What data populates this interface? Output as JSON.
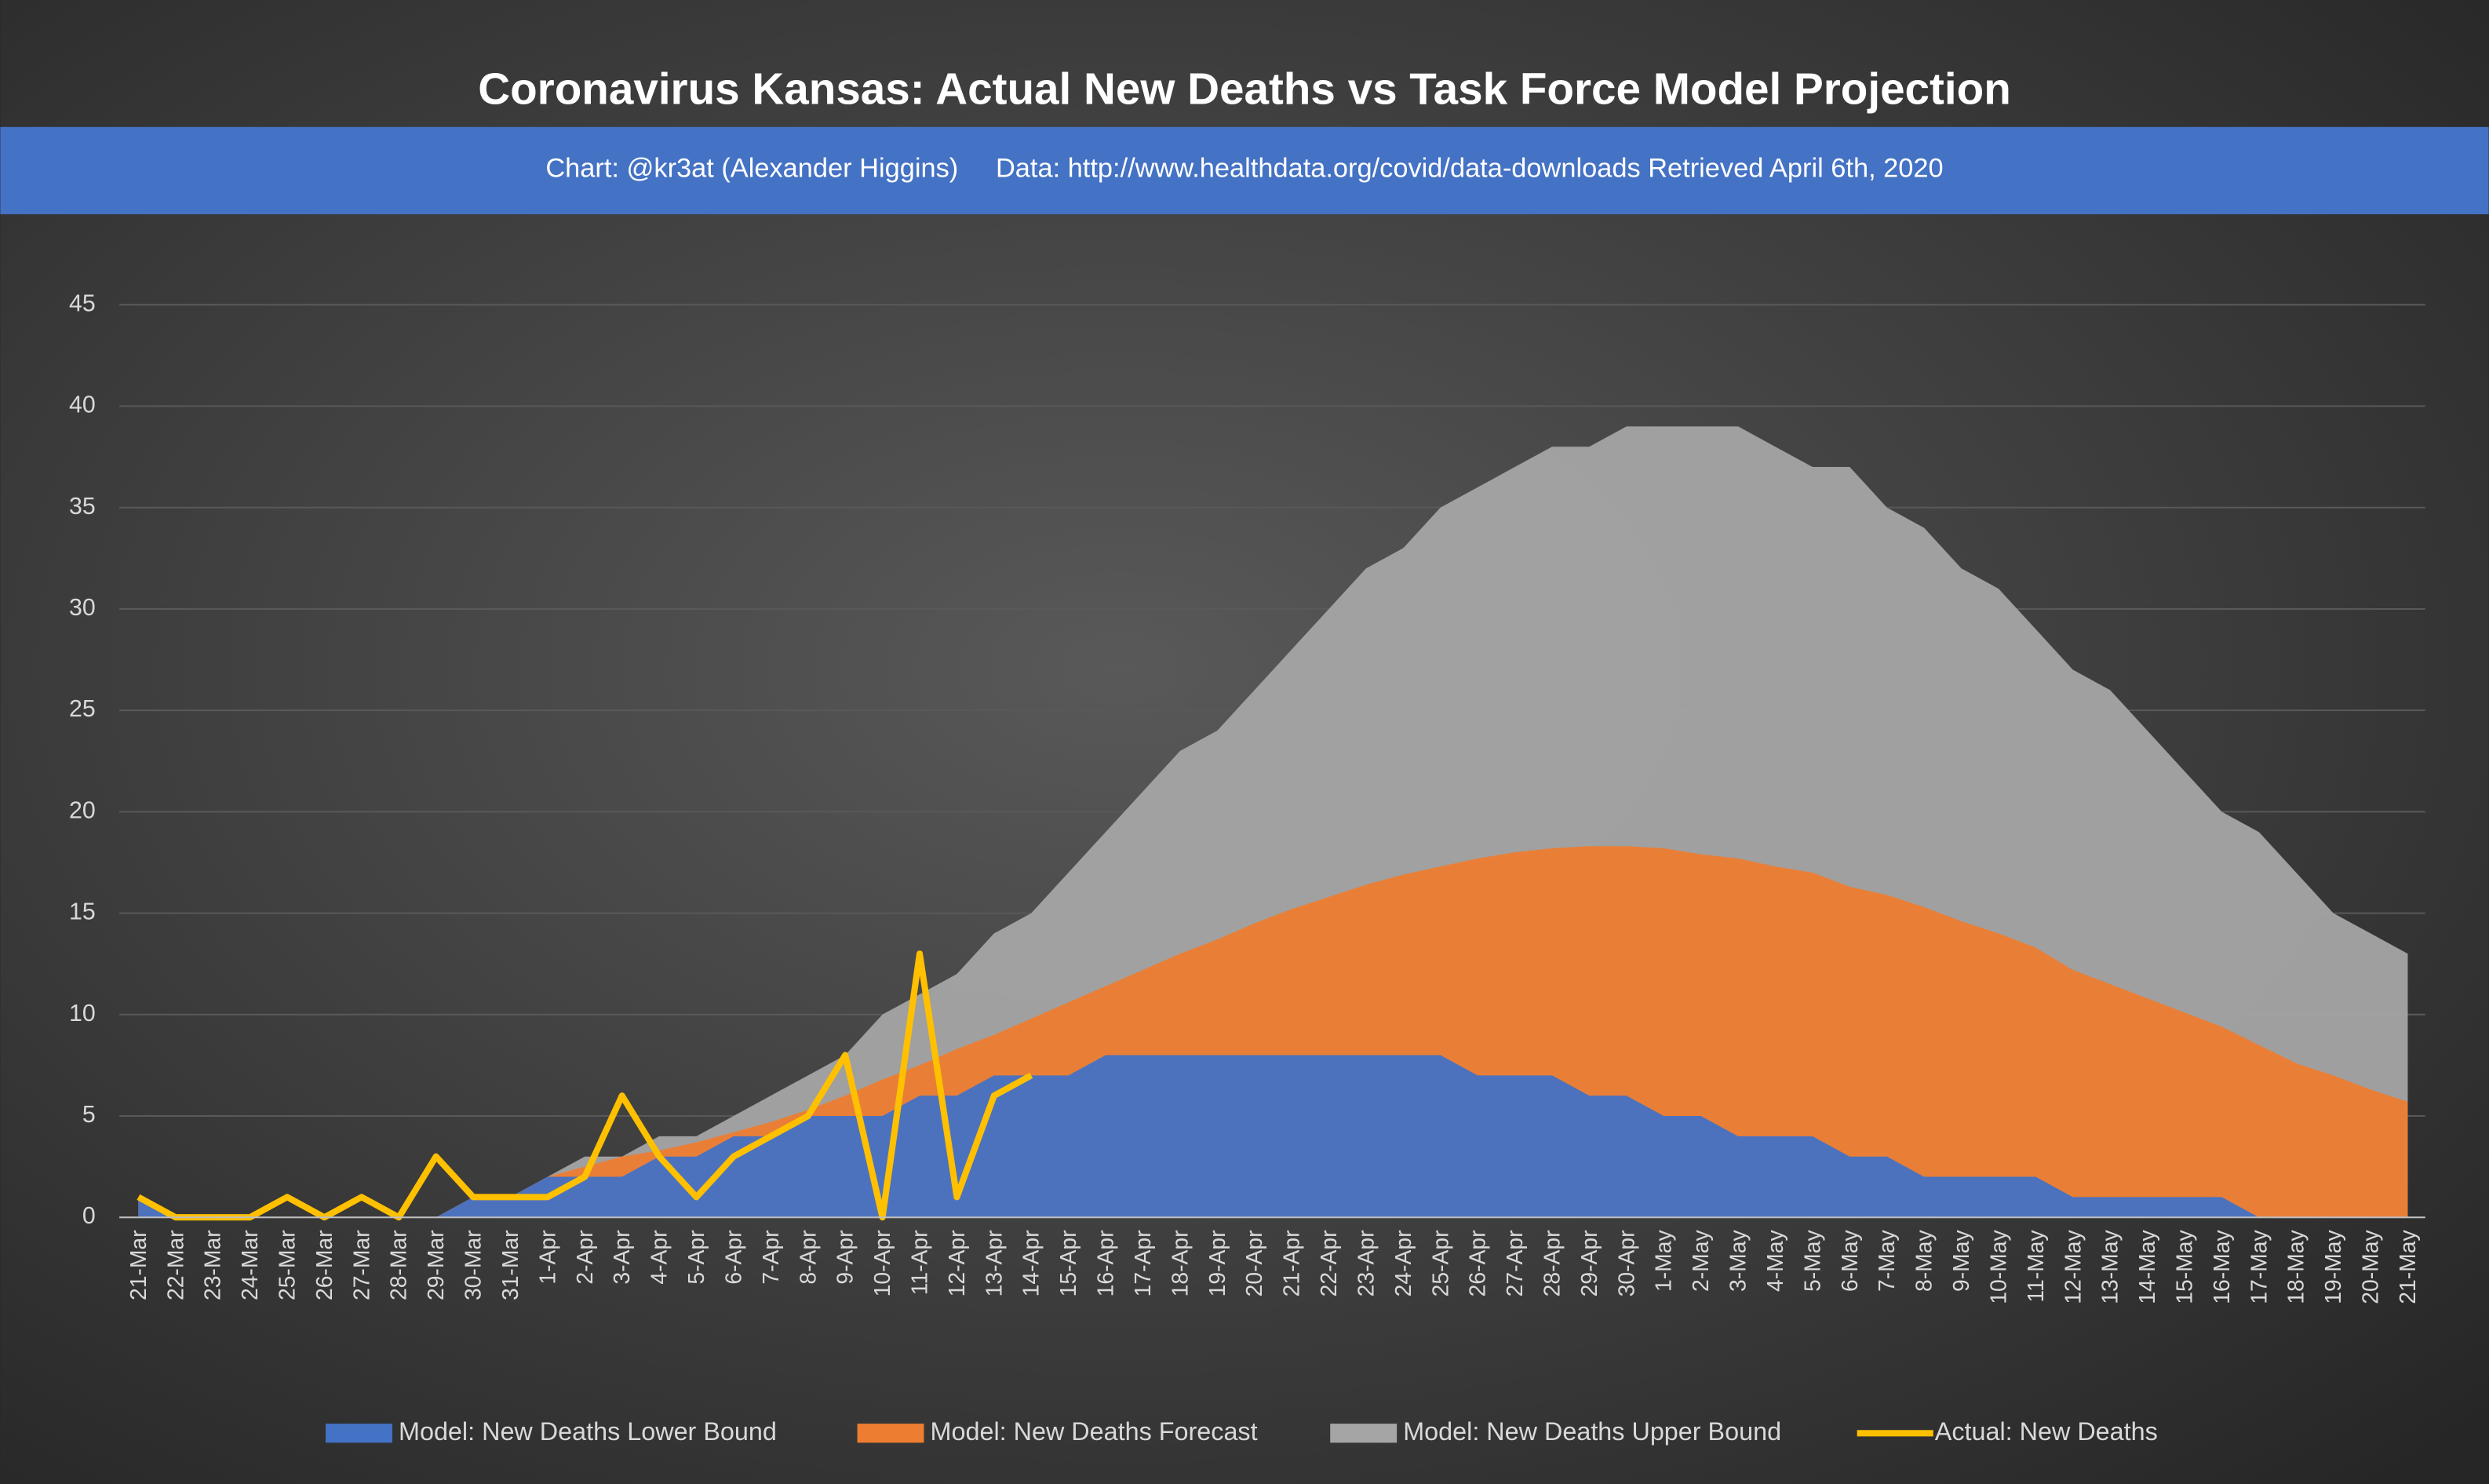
{
  "chart_data": {
    "type": "area",
    "title": "Coronavirus Kansas: Actual New Deaths vs Task Force Model Projection",
    "subtitle": "Chart: @kr3at (Alexander Higgins)     Data: http://www.healthdata.org/covid/data-downloads Retrieved April 6th, 2020",
    "categories": [
      "21-Mar",
      "22-Mar",
      "23-Mar",
      "24-Mar",
      "25-Mar",
      "26-Mar",
      "27-Mar",
      "28-Mar",
      "29-Mar",
      "30-Mar",
      "31-Mar",
      "1-Apr",
      "2-Apr",
      "3-Apr",
      "4-Apr",
      "5-Apr",
      "6-Apr",
      "7-Apr",
      "8-Apr",
      "9-Apr",
      "10-Apr",
      "11-Apr",
      "12-Apr",
      "13-Apr",
      "14-Apr",
      "15-Apr",
      "16-Apr",
      "17-Apr",
      "18-Apr",
      "19-Apr",
      "20-Apr",
      "21-Apr",
      "22-Apr",
      "23-Apr",
      "24-Apr",
      "25-Apr",
      "26-Apr",
      "27-Apr",
      "28-Apr",
      "29-Apr",
      "30-Apr",
      "1-May",
      "2-May",
      "3-May",
      "4-May",
      "5-May",
      "6-May",
      "7-May",
      "8-May",
      "9-May",
      "10-May",
      "11-May",
      "12-May",
      "13-May",
      "14-May",
      "15-May",
      "16-May",
      "17-May",
      "18-May",
      "19-May",
      "20-May",
      "21-May"
    ],
    "series": [
      {
        "name": "Model: New Deaths Lower Bound",
        "color": "#4472c4",
        "type": "area",
        "values": [
          1,
          0,
          0,
          0,
          0,
          0,
          0,
          0,
          0,
          1,
          1,
          2,
          2,
          2,
          3,
          3,
          4,
          4,
          5,
          5,
          5,
          6,
          6,
          7,
          7,
          7,
          8,
          8,
          8,
          8,
          8,
          8,
          8,
          8,
          8,
          8,
          7,
          7,
          7,
          6,
          6,
          5,
          5,
          4,
          4,
          4,
          3,
          3,
          2,
          2,
          2,
          2,
          1,
          1,
          1,
          1,
          1,
          0,
          0,
          0,
          0,
          0
        ]
      },
      {
        "name": "Model: New Deaths Forecast",
        "color": "#ed7d31",
        "type": "area",
        "values": [
          1,
          0,
          0,
          0,
          0,
          0,
          0,
          0,
          0,
          1,
          1,
          2,
          2.5,
          3,
          3.3,
          3.7,
          4.2,
          4.7,
          5.3,
          6,
          6.8,
          7.5,
          8.3,
          9,
          9.8,
          10.6,
          11.4,
          12.2,
          13,
          13.7,
          14.5,
          15.2,
          15.8,
          16.4,
          16.9,
          17.3,
          17.7,
          18,
          18.2,
          18.3,
          18.3,
          18.2,
          17.9,
          17.7,
          17.3,
          17,
          16.3,
          15.9,
          15.3,
          14.6,
          14,
          13.3,
          12.2,
          11.5,
          10.8,
          10.1,
          9.4,
          8.5,
          7.6,
          7,
          6.3,
          5.7
        ]
      },
      {
        "name": "Model: New Deaths Upper Bound",
        "color": "#a5a5a5",
        "type": "area",
        "values": [
          1,
          0,
          0,
          0,
          0,
          0,
          0,
          0,
          0,
          1,
          1,
          2,
          3,
          3,
          4,
          4,
          5,
          6,
          7,
          8,
          10,
          11,
          12,
          14,
          15,
          17,
          19,
          21,
          23,
          24,
          26,
          28,
          30,
          32,
          33,
          35,
          36,
          37,
          38,
          38,
          39,
          39,
          39,
          39,
          38,
          37,
          37,
          35,
          34,
          32,
          31,
          29,
          27,
          26,
          24,
          22,
          20,
          19,
          17,
          15,
          14,
          13
        ]
      },
      {
        "name": "Actual: New Deaths",
        "color": "#ffc000",
        "type": "line",
        "values": [
          1,
          0,
          0,
          0,
          1,
          0,
          1,
          0,
          3,
          1,
          1,
          1,
          2,
          6,
          3,
          1,
          3,
          4,
          5,
          8,
          0,
          13,
          1,
          6,
          7,
          null,
          null,
          null,
          null,
          null,
          null,
          null,
          null,
          null,
          null,
          null,
          null,
          null,
          null,
          null,
          null,
          null,
          null,
          null,
          null,
          null,
          null,
          null,
          null,
          null,
          null,
          null,
          null,
          null,
          null,
          null,
          null,
          null,
          null,
          null,
          null,
          null
        ]
      }
    ],
    "ylim": [
      0,
      45
    ],
    "yticks": [
      0,
      5,
      10,
      15,
      20,
      25,
      30,
      35,
      40,
      45
    ],
    "grid": true,
    "legend": "bottom"
  }
}
